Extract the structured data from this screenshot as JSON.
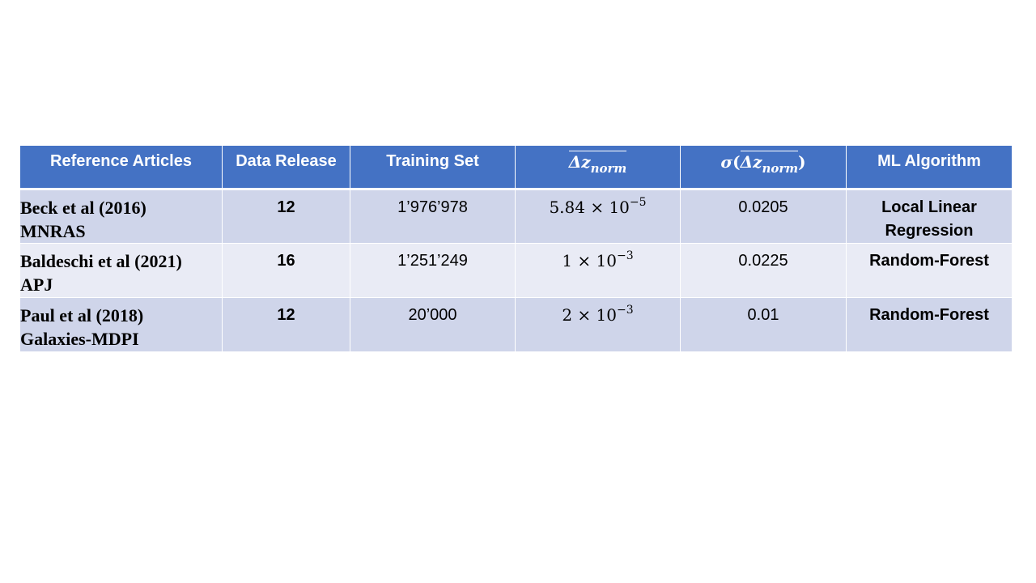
{
  "table": {
    "headers": {
      "reference": "Reference Articles",
      "data_release": "Data Release",
      "training_set": "Training Set",
      "dz_symbol": "Δz",
      "dz_subscript": "norm",
      "sigma_symbol": "σ",
      "sigma_open": "(",
      "sigma_dz": "Δz",
      "sigma_subscript": "norm",
      "sigma_close": ")",
      "ml_algorithm": "ML Algorithm"
    },
    "rows": [
      {
        "reference_line1": "Beck et al (2016)",
        "reference_line2": "MNRAS",
        "data_release": "12",
        "training_set": "1’976’978",
        "mean_base": "5.84 × 10",
        "mean_exp": "−5",
        "sigma": "0.0205",
        "algorithm_line1": "Local Linear",
        "algorithm_line2": "Regression"
      },
      {
        "reference_line1": "Baldeschi et al (2021)",
        "reference_line2": "APJ",
        "data_release": "16",
        "training_set": "1’251’249",
        "mean_base": "1 × 10",
        "mean_exp": "−3",
        "sigma": "0.0225",
        "algorithm_line1": "Random-Forest",
        "algorithm_line2": ""
      },
      {
        "reference_line1": "Paul et al (2018)",
        "reference_line2": "Galaxies-MDPI",
        "data_release": "12",
        "training_set": "20’000",
        "mean_base": "2 × 10",
        "mean_exp": "−3",
        "sigma": "0.01",
        "algorithm_line1": "Random-Forest",
        "algorithm_line2": ""
      }
    ],
    "colors": {
      "header_bg": "#4472c4",
      "row_odd_bg": "#cfd5ea",
      "row_even_bg": "#e9ebf5"
    }
  }
}
